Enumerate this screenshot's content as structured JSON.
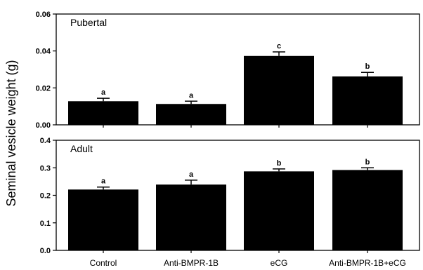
{
  "chart_data": [
    {
      "type": "bar",
      "title": "Pubertal",
      "categories": [
        "Control",
        "Anti-BMPR-1B",
        "eCG",
        "Anti-BMPR-1B+eCG"
      ],
      "values": [
        0.0128,
        0.0113,
        0.0373,
        0.0262
      ],
      "errors": [
        0.0016,
        0.0015,
        0.0022,
        0.0022
      ],
      "significance": [
        "a",
        "a",
        "c",
        "b"
      ],
      "ylim": [
        0,
        0.06
      ],
      "yticks": [
        "0.00",
        "0.02",
        "0.04",
        "0.06"
      ],
      "yticks_values": [
        0,
        0.02,
        0.04,
        0.06
      ],
      "bar_color": "#000000"
    },
    {
      "type": "bar",
      "title": "Adult",
      "categories": [
        "Control",
        "Anti-BMPR-1B",
        "eCG",
        "Anti-BMPR-1B+eCG"
      ],
      "values": [
        0.221,
        0.239,
        0.287,
        0.292
      ],
      "errors": [
        0.009,
        0.016,
        0.009,
        0.008
      ],
      "significance": [
        "a",
        "a",
        "b",
        "b"
      ],
      "ylim": [
        0,
        0.4
      ],
      "yticks": [
        "0.0",
        "0.1",
        "0.2",
        "0.3",
        "0.4"
      ],
      "yticks_values": [
        0,
        0.1,
        0.2,
        0.3,
        0.4
      ],
      "bar_color": "#000000"
    }
  ],
  "ylabel": "Seminal vesicle weight (g)"
}
